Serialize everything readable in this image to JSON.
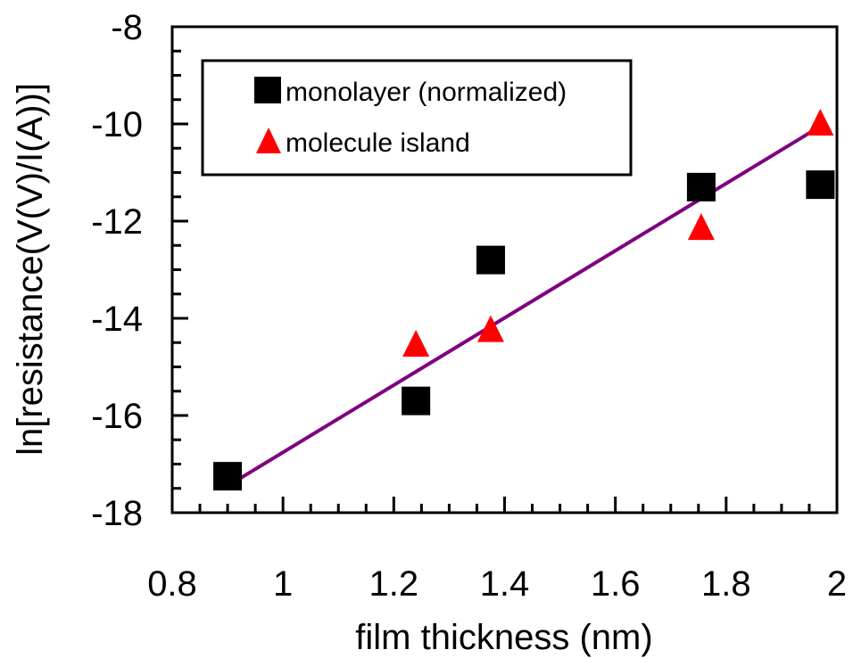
{
  "chart_data": {
    "type": "scatter",
    "title": "",
    "xlabel": "film thickness (nm)",
    "ylabel": "ln[resistance(V(V)/I(A))]",
    "xlim": [
      0.8,
      2.0
    ],
    "ylim": [
      -18,
      -8
    ],
    "x_ticks": [
      0.8,
      1,
      1.2,
      1.4,
      1.6,
      1.8,
      2
    ],
    "x_tick_labels": [
      "0.8",
      "1",
      "1.2",
      "1.4",
      "1.6",
      "1.8",
      "2"
    ],
    "y_ticks": [
      -18,
      -16,
      -14,
      -12,
      -10,
      -8
    ],
    "y_tick_labels": [
      "-18",
      "-16",
      "-14",
      "-12",
      "-10",
      "-8"
    ],
    "grid": false,
    "legend_position": "top-left",
    "series": [
      {
        "name": "monolayer (normalized)",
        "marker": "square",
        "color": "#000000",
        "x": [
          0.9,
          1.24,
          1.375,
          1.755,
          1.97
        ],
        "y": [
          -17.25,
          -15.7,
          -12.8,
          -11.3,
          -11.25
        ]
      },
      {
        "name": "molecule island",
        "marker": "triangle",
        "color": "#ff0000",
        "x": [
          1.24,
          1.375,
          1.755,
          1.97
        ],
        "y": [
          -14.55,
          -14.25,
          -12.15,
          -10.0
        ]
      }
    ],
    "fit_line": {
      "color": "#800080",
      "x": [
        0.9,
        1.97
      ],
      "y": [
        -17.45,
        -10.05
      ]
    }
  }
}
